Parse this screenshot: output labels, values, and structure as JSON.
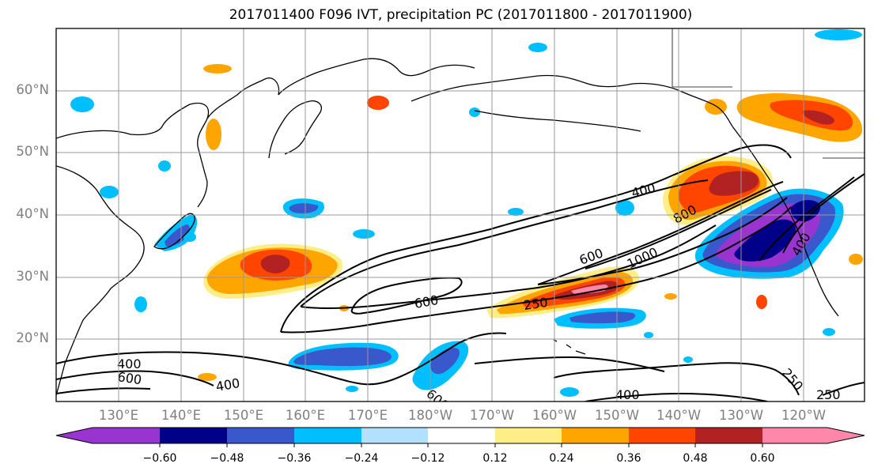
{
  "title": "2017011400 F096 IVT, precipitation PC (2017011800 - 2017011900)",
  "lat_labels": [
    "60°N",
    "50°N",
    "40°N",
    "30°N",
    "20°N"
  ],
  "lon_labels": [
    "130°E",
    "140°E",
    "150°E",
    "160°E",
    "170°E",
    "180°W",
    "170°W",
    "160°W",
    "150°W",
    "140°W",
    "130°W",
    "120°W"
  ],
  "contour_labels": [
    "400",
    "600",
    "800",
    "600",
    "1000",
    "600",
    "250",
    "400",
    "600",
    "400",
    "400",
    "400",
    "250",
    "250"
  ],
  "colorbar": {
    "ticks": [
      "−0.60",
      "−0.48",
      "−0.36",
      "−0.24",
      "−0.12",
      "0.12",
      "0.24",
      "0.36",
      "0.48",
      "0.60"
    ],
    "colors": [
      "#9a34d0",
      "#000088",
      "#3858cc",
      "#00bfff",
      "#b2e0ff",
      "#ffffff",
      "#ffee88",
      "#ffa500",
      "#ff4500",
      "#b22222",
      "#ff88aa"
    ]
  },
  "colors": {
    "neg_strong": "#9a34d0",
    "neg_dark": "#000088",
    "neg_mid": "#3858cc",
    "neg_light": "#00bfff",
    "neg_faint": "#b2e0ff",
    "pos_faint": "#ffee88",
    "pos_light": "#ffa500",
    "pos_mid": "#ff4500",
    "pos_dark": "#b22222",
    "pos_strong": "#ff88aa"
  }
}
